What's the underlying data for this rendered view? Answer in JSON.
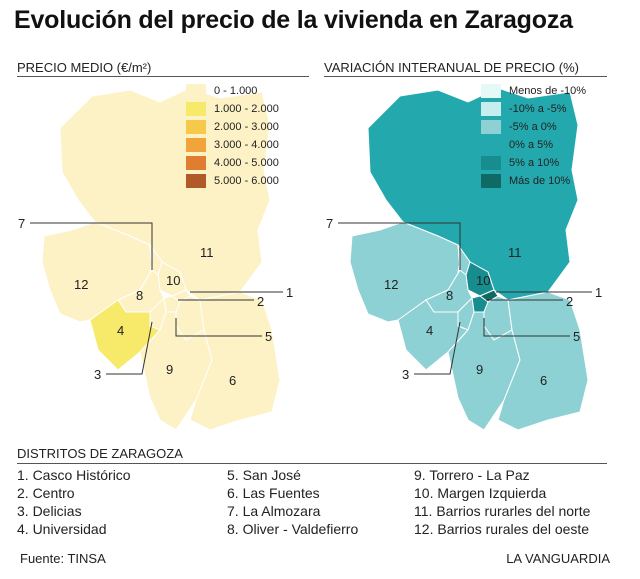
{
  "title": "Evolución del precio de la vivienda en Zaragoza",
  "left_map": {
    "subtitle": "PRECIO MEDIO (€/m²)",
    "legend": [
      {
        "label": "0 - 1.000",
        "color": "#fdf2c5"
      },
      {
        "label": "1.000 - 2.000",
        "color": "#f7e96a"
      },
      {
        "label": "2.000 - 3.000",
        "color": "#f7c94b"
      },
      {
        "label": "3.000 - 4.000",
        "color": "#f0a43a"
      },
      {
        "label": "4.000 - 5.000",
        "color": "#e07d30"
      },
      {
        "label": "5.000 - 6.000",
        "color": "#b05a28"
      }
    ]
  },
  "right_map": {
    "subtitle": "VARIACIÓN INTERANUAL DE PRECIO (%)",
    "legend": [
      {
        "label": "Menos de -10%",
        "color": "#e6f9f9"
      },
      {
        "label": "-10% a -5%",
        "color": "#c6eeee"
      },
      {
        "label": "-5% a 0%",
        "color": "#8ed1d4"
      },
      {
        "label": "0% a 5%",
        "color": "#23a9ad"
      },
      {
        "label": "5% a 10%",
        "color": "#178d8f"
      },
      {
        "label": "Más de 10%",
        "color": "#0f6a66"
      }
    ]
  },
  "district_numbers": [
    "1",
    "2",
    "3",
    "4",
    "5",
    "6",
    "7",
    "8",
    "9",
    "10",
    "11",
    "12"
  ],
  "districts_title": "DISTRITOS DE ZARAGOZA",
  "districts": {
    "col1": [
      "1. Casco Histórico",
      "2. Centro",
      "3. Delicias",
      "4. Universidad"
    ],
    "col2": [
      "5. San José",
      "6. Las Fuentes",
      "7. La Almozara",
      "8. Oliver - Valdefierro"
    ],
    "col3": [
      "9. Torrero - La Paz",
      "10. Margen Izquierda",
      "11. Barrios rurarles del norte",
      "12. Barrios rurales del oeste"
    ]
  },
  "footer": {
    "source": "Fuente: TINSA",
    "credit": "LA VANGUARDIA"
  }
}
